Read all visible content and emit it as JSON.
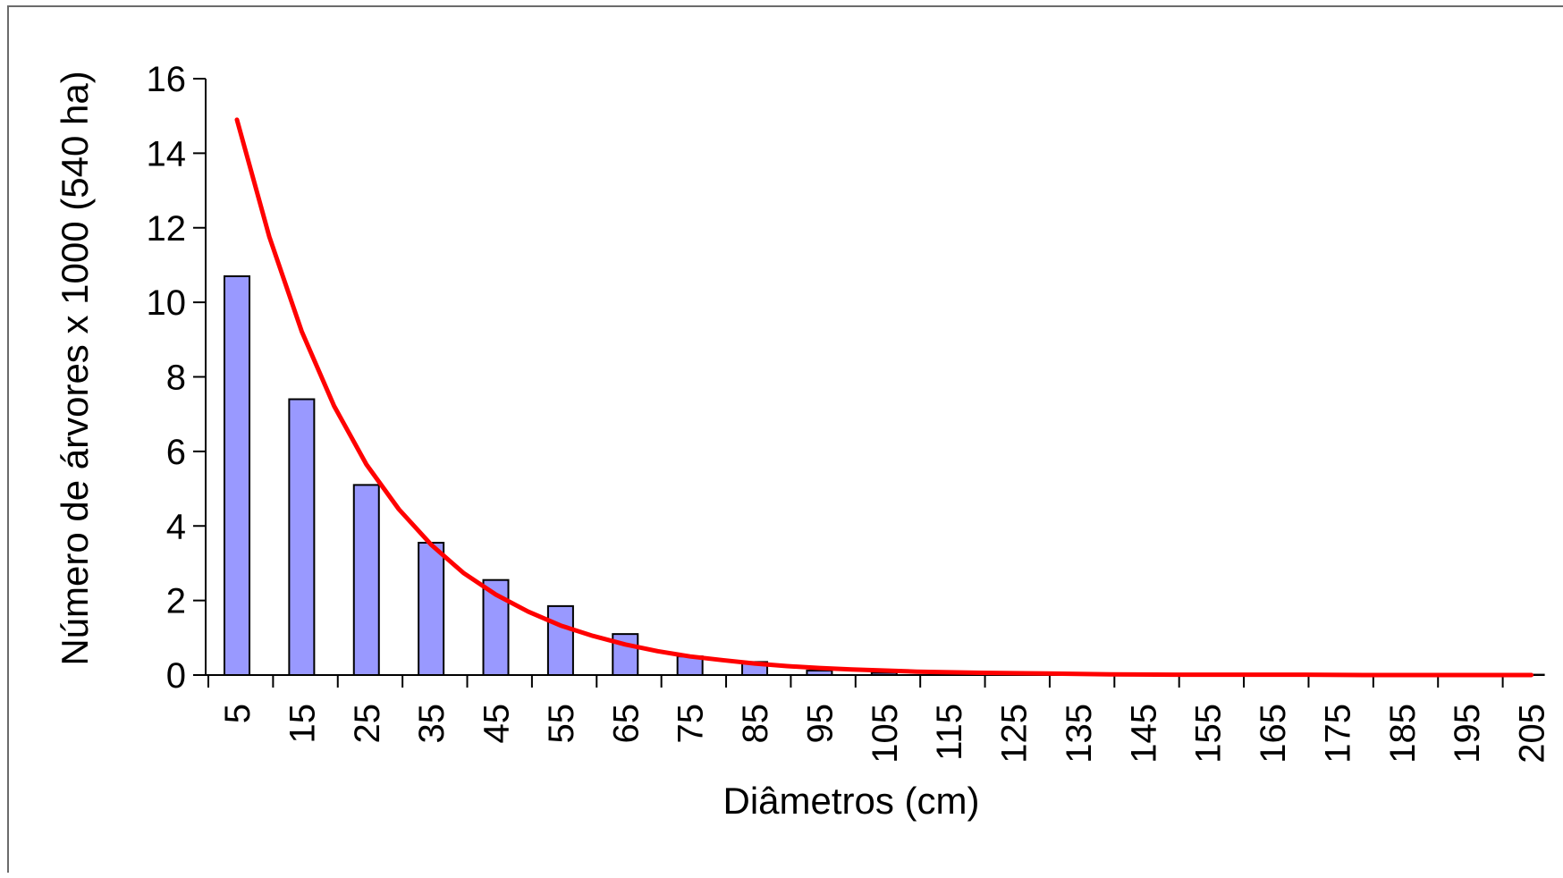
{
  "chart_data": {
    "type": "bar",
    "xlabel": "Diâmetros (cm)",
    "ylabel": "Número de árvores x 1000 (540 ha)",
    "ylim": [
      0,
      16
    ],
    "yticks": [
      "0",
      "2",
      "4",
      "6",
      "8",
      "10",
      "12",
      "14",
      "16"
    ],
    "grid": false,
    "legend": "none",
    "categories": [
      "5",
      "15",
      "25",
      "35",
      "45",
      "55",
      "65",
      "75",
      "85",
      "95",
      "105",
      "115",
      "125",
      "135",
      "145",
      "155",
      "165",
      "175",
      "185",
      "195",
      "205"
    ],
    "series": [
      {
        "kind": "bar",
        "color": "#9999ff",
        "values": [
          10.7,
          7.4,
          5.1,
          3.55,
          2.55,
          1.85,
          1.1,
          0.5,
          0.35,
          0.12,
          0.06,
          0.02,
          0.01,
          0.01,
          0,
          0,
          0,
          0,
          0,
          0,
          0.01
        ]
      },
      {
        "kind": "line",
        "color": "#ff0000",
        "x": [
          5,
          10,
          15,
          20,
          25,
          30,
          35,
          40,
          45,
          50,
          55,
          60,
          65,
          70,
          75,
          80,
          85,
          90,
          95,
          100,
          110,
          120,
          130,
          140,
          150,
          160,
          170,
          180,
          190,
          200,
          205
        ],
        "values": [
          14.9,
          11.76,
          9.22,
          7.22,
          5.65,
          4.45,
          3.5,
          2.74,
          2.16,
          1.7,
          1.33,
          1.05,
          0.82,
          0.64,
          0.5,
          0.4,
          0.31,
          0.24,
          0.19,
          0.15,
          0.09,
          0.06,
          0.04,
          0.02,
          0.01,
          0.01,
          0.01,
          0.0,
          0.0,
          0.0,
          0.0
        ]
      }
    ]
  }
}
